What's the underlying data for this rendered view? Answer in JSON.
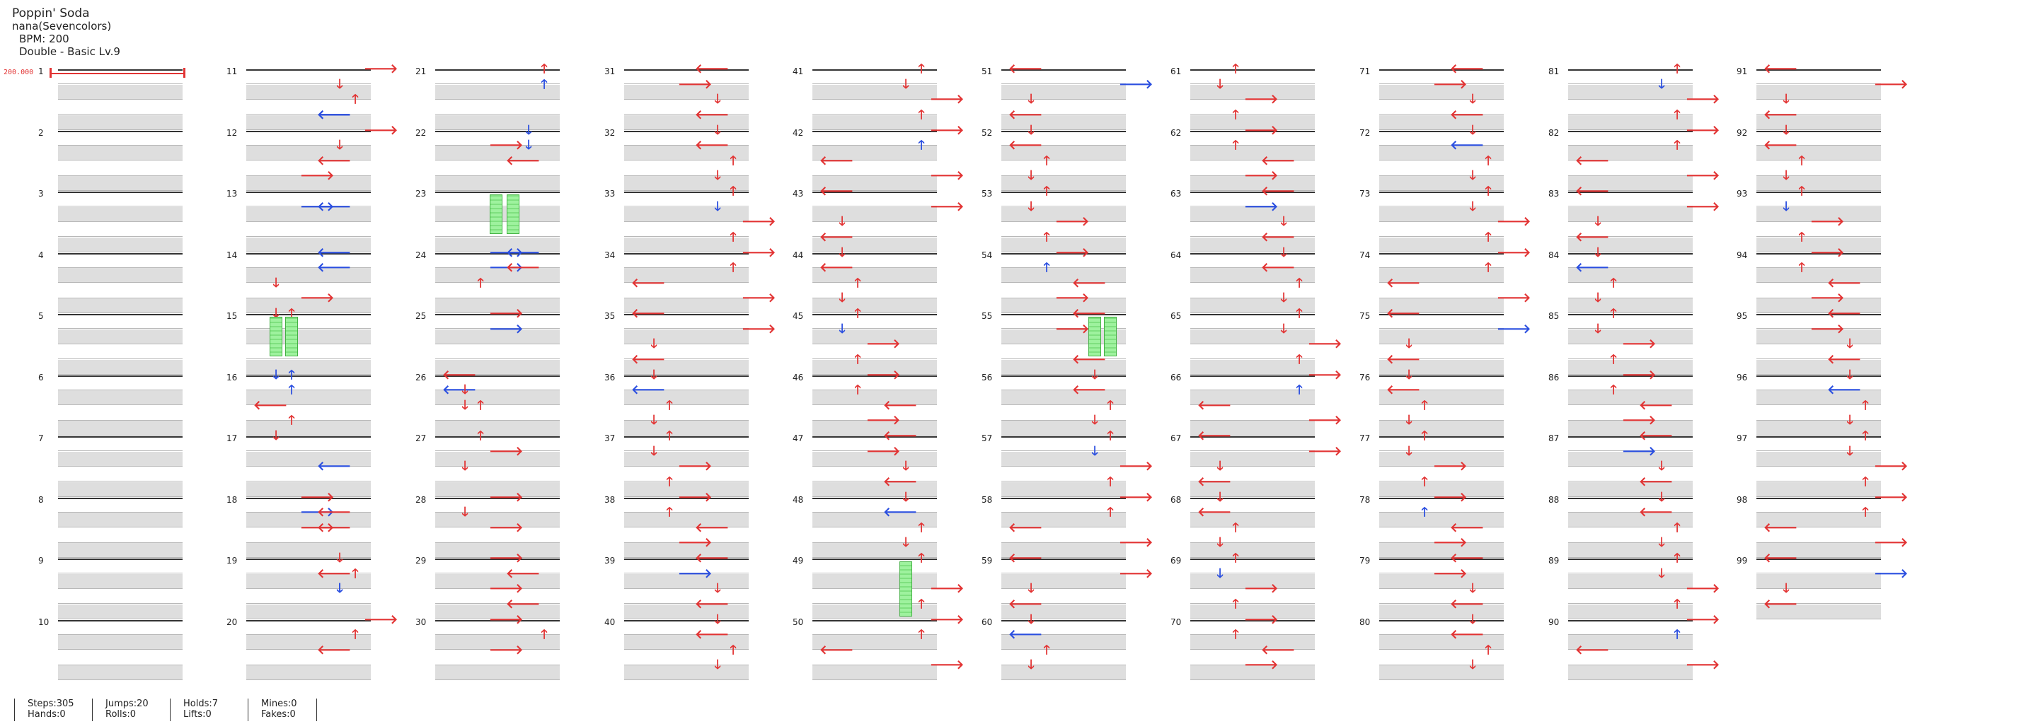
{
  "header": {
    "title": "Poppin' Soda",
    "artist": "nana(Sevencolors)",
    "bpm": "BPM: 200",
    "difficulty": "Double - Basic  Lv.9"
  },
  "bpm_marker": "200.000",
  "measures": [
    "1",
    "2",
    "3",
    "4",
    "5",
    "6",
    "7",
    "8",
    "9",
    "10",
    "11",
    "12",
    "13",
    "14",
    "15",
    "16",
    "17",
    "18",
    "19",
    "20",
    "21",
    "22",
    "23",
    "24",
    "25",
    "26",
    "27",
    "28",
    "29",
    "30",
    "31",
    "32",
    "33",
    "34",
    "35",
    "36",
    "37",
    "38",
    "39",
    "40",
    "41",
    "42",
    "43",
    "44",
    "45",
    "46",
    "47",
    "48",
    "49",
    "50",
    "51",
    "52",
    "53",
    "54",
    "55",
    "56",
    "57",
    "58",
    "59",
    "60",
    "61",
    "62",
    "63",
    "64",
    "65",
    "66",
    "67",
    "68",
    "69",
    "70",
    "71",
    "72",
    "73",
    "74",
    "75",
    "76",
    "77",
    "78",
    "79",
    "80",
    "81",
    "82",
    "83",
    "84",
    "85",
    "86",
    "87",
    "88",
    "89",
    "90",
    "91",
    "92",
    "93",
    "94",
    "95",
    "96",
    "97",
    "98",
    "99"
  ],
  "arrow_glyphs": {
    "L": "🡐",
    "D": "🡓",
    "U": "🡑",
    "R": "🡒"
  },
  "colors": {
    "red_note": "#e23434",
    "blue_note": "#2b4fe0",
    "hold": "#9ef29e",
    "bpm": "#e23434"
  },
  "stats": [
    [
      "Steps:305",
      "Hands:0"
    ],
    [
      "Jumps:20",
      "Rolls:0"
    ],
    [
      "Holds:7",
      "Lifts:0"
    ],
    [
      "Mines:0",
      "Fakes:0"
    ]
  ]
}
